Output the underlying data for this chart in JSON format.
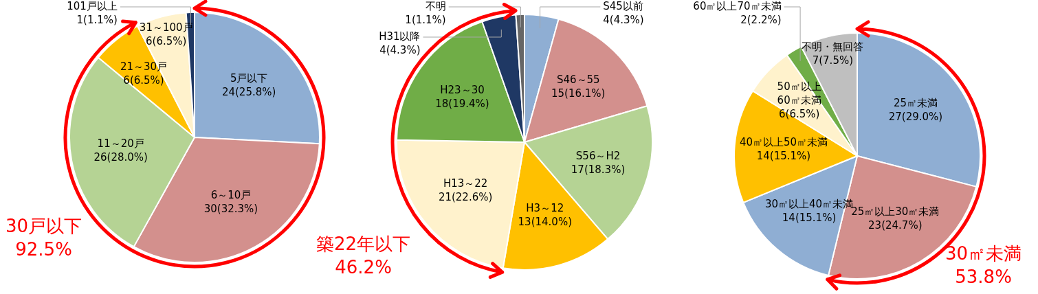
{
  "chart_data": [
    {
      "type": "pie",
      "categories": [
        "5戸以下",
        "6～10戸",
        "11～20戸",
        "21～30戸",
        "31～100戸",
        "101戸以上"
      ],
      "values": [
        24,
        30,
        26,
        6,
        6,
        1
      ],
      "colors": [
        "#8faed3",
        "#d3908d",
        "#b5d394",
        "#ffc000",
        "#fff2cc",
        "#1f3864"
      ],
      "value_labels": [
        "24(25.8%)",
        "30(32.3%)",
        "26(28.0%)",
        "6(6.5%)",
        "6(6.5%)",
        "1(1.1%)"
      ],
      "annotations": [
        "30戸以下",
        "92.5%"
      ]
    },
    {
      "type": "pie",
      "categories": [
        "S45以前",
        "S46～55",
        "S56～H2",
        "H3～12",
        "H13～22",
        "H23～30",
        "H31以降",
        "不明"
      ],
      "values": [
        4,
        15,
        17,
        13,
        21,
        18,
        4,
        1
      ],
      "colors": [
        "#8faed3",
        "#d3908d",
        "#b5d394",
        "#ffc000",
        "#fff2cc",
        "#70ad47",
        "#1f3864",
        "#666666"
      ],
      "value_labels": [
        "4(4.3%)",
        "15(16.1%)",
        "17(18.3%)",
        "13(14.0%)",
        "21(22.6%)",
        "18(19.4%)",
        "4(4.3%)",
        "1(1.1%)"
      ],
      "annotations": [
        "築22年以下",
        "46.2%"
      ]
    },
    {
      "type": "pie",
      "categories": [
        "25㎡未満",
        "25㎡以上30㎡未満",
        "30㎡以上40㎡未満",
        "40㎡以上50㎡未満",
        "50㎡以上60㎡未満",
        "60㎡以上70㎡未満",
        "不明・無回答"
      ],
      "values": [
        27,
        23,
        14,
        14,
        6,
        2,
        7
      ],
      "colors": [
        "#8faed3",
        "#d3908d",
        "#8faed3",
        "#ffc000",
        "#fff2cc",
        "#70ad47",
        "#bfbfbf"
      ],
      "value_labels": [
        "27(29.0%)",
        "23(24.7%)",
        "14(15.1%)",
        "14(15.1%)",
        "6(6.5%)",
        "2(2.2%)",
        "7(7.5%)"
      ],
      "annotations": [
        "30㎡未満",
        "53.8%"
      ]
    }
  ]
}
